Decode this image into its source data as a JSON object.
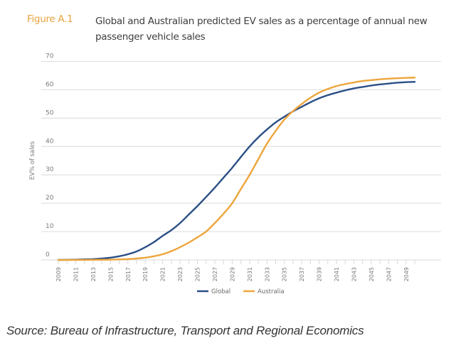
{
  "figure": {
    "label": "Figure A.1",
    "title": "Global and Australian predicted EV sales as a percentage of annual new passenger vehicle sales"
  },
  "source": "Source: Bureau of Infrastructure, Transport and Regional Economics",
  "colors": {
    "global": "#2b4f86",
    "australia": "#eda53c",
    "grid": "#e0e0e0",
    "label_accent": "#e8a33d"
  },
  "chart_data": {
    "type": "line",
    "title": "Global and Australian predicted EV sales as a percentage of annual new passenger vehicle sales",
    "xlabel": "",
    "ylabel": "EV% of sales",
    "ylim": [
      0,
      70
    ],
    "xlim": [
      2009,
      2050
    ],
    "yticks": [
      0,
      10,
      20,
      30,
      40,
      50,
      60,
      70
    ],
    "xtick_labels": [
      "2009",
      "2011",
      "2013",
      "2015",
      "2017",
      "2019",
      "2021",
      "2023",
      "2025",
      "2027",
      "2029",
      "2031",
      "2033",
      "2035",
      "2037",
      "2039",
      "2041",
      "2043",
      "2045",
      "2047",
      "2049"
    ],
    "grid": true,
    "legend_position": "bottom-center",
    "x": [
      2009,
      2010,
      2011,
      2012,
      2013,
      2014,
      2015,
      2016,
      2017,
      2018,
      2019,
      2020,
      2021,
      2022,
      2023,
      2024,
      2025,
      2026,
      2027,
      2028,
      2029,
      2030,
      2031,
      2032,
      2033,
      2034,
      2035,
      2036,
      2037,
      2038,
      2039,
      2040,
      2041,
      2042,
      2043,
      2044,
      2045,
      2046,
      2047,
      2048,
      2049,
      2050
    ],
    "series": [
      {
        "name": "Global",
        "values": [
          0,
          0.05,
          0.1,
          0.2,
          0.3,
          0.5,
          0.8,
          1.3,
          2.0,
          3.0,
          4.5,
          6.3,
          8.5,
          10.5,
          13,
          16,
          19,
          22.2,
          25.5,
          29,
          32.5,
          36.3,
          40,
          43.2,
          46,
          48.5,
          50.5,
          52.4,
          54,
          55.6,
          57,
          58.1,
          59,
          59.8,
          60.5,
          61,
          61.5,
          61.9,
          62.2,
          62.5,
          62.7,
          62.8
        ]
      },
      {
        "name": "Australia",
        "values": [
          0,
          0,
          0,
          0.02,
          0.04,
          0.07,
          0.1,
          0.2,
          0.3,
          0.5,
          0.8,
          1.3,
          2.0,
          3.1,
          4.5,
          6.1,
          8.0,
          10,
          13,
          16.3,
          20,
          25,
          30,
          35.5,
          41,
          45.5,
          49.5,
          52.5,
          55,
          57.2,
          59,
          60.3,
          61.3,
          62,
          62.6,
          63.1,
          63.4,
          63.7,
          63.9,
          64.1,
          64.2,
          64.3
        ]
      }
    ]
  }
}
